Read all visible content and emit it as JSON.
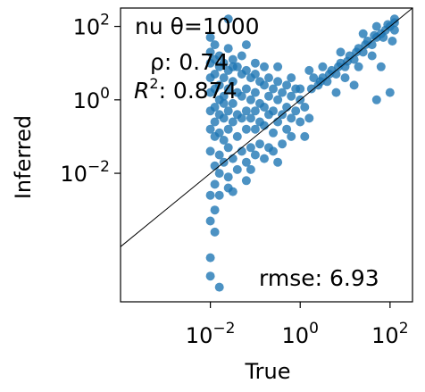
{
  "chart_data": {
    "type": "scatter",
    "title": "",
    "xlabel": "True",
    "ylabel": "Inferred",
    "xscale": "log",
    "yscale": "log",
    "xlim_log10": [
      -4.0,
      2.5
    ],
    "ylim_log10": [
      -5.5,
      2.5
    ],
    "x_ticks": [
      {
        "exp": -2,
        "base": "10",
        "sup": "−2"
      },
      {
        "exp": 0,
        "base": "10",
        "sup": "0"
      },
      {
        "exp": 2,
        "base": "10",
        "sup": "2"
      }
    ],
    "y_ticks": [
      {
        "exp": -2,
        "base": "10",
        "sup": "−2"
      },
      {
        "exp": 0,
        "base": "10",
        "sup": "0"
      },
      {
        "exp": 2,
        "base": "10",
        "sup": "2"
      }
    ],
    "grid": false,
    "point_color": "#1f77b4",
    "identity_line": true,
    "annotations": {
      "line1": "nu θ=1000",
      "rho": "ρ: 0.74",
      "r2_symbol": "R",
      "r2_sup": "2",
      "r2_value": ": 0.874",
      "rmse": "rmse: 6.93"
    },
    "points_log10": [
      [
        -2.0,
        1.7
      ],
      [
        -2.0,
        1.3
      ],
      [
        -2.0,
        1.0
      ],
      [
        -2.0,
        0.6
      ],
      [
        -2.0,
        0.2
      ],
      [
        -2.0,
        -0.3
      ],
      [
        -2.0,
        -0.8
      ],
      [
        -1.9,
        1.5
      ],
      [
        -1.9,
        1.1
      ],
      [
        -1.9,
        0.7
      ],
      [
        -1.9,
        0.3
      ],
      [
        -1.9,
        -0.2
      ],
      [
        -1.9,
        -0.6
      ],
      [
        -1.9,
        -1.0
      ],
      [
        -1.8,
        1.2
      ],
      [
        -1.8,
        0.9
      ],
      [
        -1.8,
        0.4
      ],
      [
        -1.8,
        0.0
      ],
      [
        -1.8,
        -0.4
      ],
      [
        -1.8,
        -0.9
      ],
      [
        -1.7,
        1.0
      ],
      [
        -1.7,
        0.6
      ],
      [
        -1.7,
        0.1
      ],
      [
        -1.7,
        -0.5
      ],
      [
        -1.7,
        -1.1
      ],
      [
        -1.6,
        1.4
      ],
      [
        -1.6,
        0.8
      ],
      [
        -1.6,
        0.3
      ],
      [
        -1.6,
        -0.3
      ],
      [
        -1.6,
        -0.8
      ],
      [
        -1.5,
        1.1
      ],
      [
        -1.5,
        0.5
      ],
      [
        -1.5,
        -0.1
      ],
      [
        -1.5,
        -0.6
      ],
      [
        -1.4,
        0.9
      ],
      [
        -1.4,
        0.2
      ],
      [
        -1.4,
        -0.4
      ],
      [
        -1.4,
        -1.0
      ],
      [
        -1.3,
        1.2
      ],
      [
        -1.3,
        0.7
      ],
      [
        -1.3,
        0.1
      ],
      [
        -1.3,
        -0.5
      ],
      [
        -1.2,
        0.8
      ],
      [
        -1.2,
        0.3
      ],
      [
        -1.2,
        -0.3
      ],
      [
        -1.2,
        -0.8
      ],
      [
        -1.1,
        0.6
      ],
      [
        -1.1,
        0.0
      ],
      [
        -1.1,
        -0.5
      ],
      [
        -1.0,
        0.7
      ],
      [
        -1.0,
        0.2
      ],
      [
        -1.0,
        -0.3
      ],
      [
        -1.0,
        -0.8
      ],
      [
        -0.9,
        0.5
      ],
      [
        -0.9,
        -0.1
      ],
      [
        -0.9,
        -0.6
      ],
      [
        -0.8,
        0.4
      ],
      [
        -0.8,
        -0.2
      ],
      [
        -0.8,
        -0.7
      ],
      [
        -0.7,
        0.6
      ],
      [
        -0.7,
        0.1
      ],
      [
        -0.7,
        -0.4
      ],
      [
        -0.6,
        0.3
      ],
      [
        -0.6,
        -0.3
      ],
      [
        -0.6,
        -0.9
      ],
      [
        -0.5,
        0.5
      ],
      [
        -0.5,
        0.0
      ],
      [
        -0.5,
        -0.6
      ],
      [
        -0.4,
        0.2
      ],
      [
        -0.4,
        -0.4
      ],
      [
        -0.3,
        0.4
      ],
      [
        -0.3,
        -0.2
      ],
      [
        -0.3,
        -0.8
      ],
      [
        -0.2,
        0.1
      ],
      [
        -0.2,
        -0.5
      ],
      [
        -0.1,
        0.3
      ],
      [
        -0.1,
        -0.3
      ],
      [
        0.0,
        0.0
      ],
      [
        0.0,
        -0.6
      ],
      [
        0.1,
        -0.2
      ],
      [
        0.1,
        -1.0
      ],
      [
        0.2,
        -0.5
      ],
      [
        -2.0,
        -1.4
      ],
      [
        -1.9,
        -1.8
      ],
      [
        -1.9,
        -2.3
      ],
      [
        -1.8,
        -1.5
      ],
      [
        -1.8,
        -2.0
      ],
      [
        -1.7,
        -1.7
      ],
      [
        -1.6,
        -1.3
      ],
      [
        -1.6,
        -2.1
      ],
      [
        -1.5,
        -1.6
      ],
      [
        -1.4,
        -1.9
      ],
      [
        -1.3,
        -1.4
      ],
      [
        -1.2,
        -1.7
      ],
      [
        -1.1,
        -1.3
      ],
      [
        -1.0,
        -1.5
      ],
      [
        -0.9,
        -1.2
      ],
      [
        -0.8,
        -1.6
      ],
      [
        -0.7,
        -1.3
      ],
      [
        -0.6,
        -1.4
      ],
      [
        -0.4,
        -1.2
      ],
      [
        -0.2,
        -1.0
      ],
      [
        -2.0,
        -2.6
      ],
      [
        -1.8,
        -2.6
      ],
      [
        -1.6,
        -2.4
      ],
      [
        -2.0,
        -3.3
      ],
      [
        -1.9,
        -3.6
      ],
      [
        -1.9,
        -3.0
      ],
      [
        -2.0,
        -4.3
      ],
      [
        -2.0,
        -4.8
      ],
      [
        -1.8,
        -5.1
      ],
      [
        -1.5,
        -2.5
      ],
      [
        -1.2,
        -2.2
      ],
      [
        0.3,
        0.6
      ],
      [
        0.4,
        0.4
      ],
      [
        0.5,
        0.6
      ],
      [
        0.6,
        0.5
      ],
      [
        0.7,
        0.8
      ],
      [
        0.8,
        0.7
      ],
      [
        0.9,
        1.0
      ],
      [
        1.0,
        0.9
      ],
      [
        1.1,
        1.2
      ],
      [
        1.2,
        1.1
      ],
      [
        1.3,
        1.4
      ],
      [
        1.4,
        1.3
      ],
      [
        1.5,
        1.6
      ],
      [
        1.6,
        1.5
      ],
      [
        1.7,
        1.7
      ],
      [
        1.8,
        1.8
      ],
      [
        1.9,
        1.9
      ],
      [
        2.0,
        2.0
      ],
      [
        2.1,
        2.1
      ],
      [
        2.1,
        1.9
      ],
      [
        1.95,
        2.05
      ],
      [
        1.85,
        1.7
      ],
      [
        1.65,
        1.75
      ],
      [
        1.45,
        1.5
      ],
      [
        1.25,
        1.3
      ],
      [
        1.05,
        1.05
      ],
      [
        0.85,
        0.9
      ],
      [
        0.65,
        0.7
      ],
      [
        0.45,
        0.5
      ],
      [
        0.25,
        0.3
      ],
      [
        1.0,
        0.6
      ],
      [
        1.3,
        0.9
      ],
      [
        1.6,
        1.2
      ],
      [
        1.8,
        0.9
      ],
      [
        2.0,
        0.2
      ],
      [
        1.7,
        0.0
      ],
      [
        1.2,
        0.4
      ],
      [
        0.8,
        0.2
      ],
      [
        0.5,
        0.9
      ],
      [
        0.9,
        1.3
      ],
      [
        1.4,
        1.8
      ],
      [
        1.7,
        2.0
      ],
      [
        2.1,
        2.2
      ],
      [
        2.05,
        1.6
      ],
      [
        -1.6,
        2.2
      ],
      [
        -0.5,
        0.9
      ],
      [
        -0.2,
        0.6
      ],
      [
        0.0,
        0.3
      ],
      [
        0.2,
        0.8
      ],
      [
        -1.1,
        -1.9
      ],
      [
        -0.5,
        -1.7
      ],
      [
        -1.7,
        -0.1
      ],
      [
        -1.5,
        0.9
      ],
      [
        -1.2,
        1.5
      ],
      [
        -1.0,
        1.0
      ],
      [
        -0.8,
        0.9
      ]
    ]
  }
}
